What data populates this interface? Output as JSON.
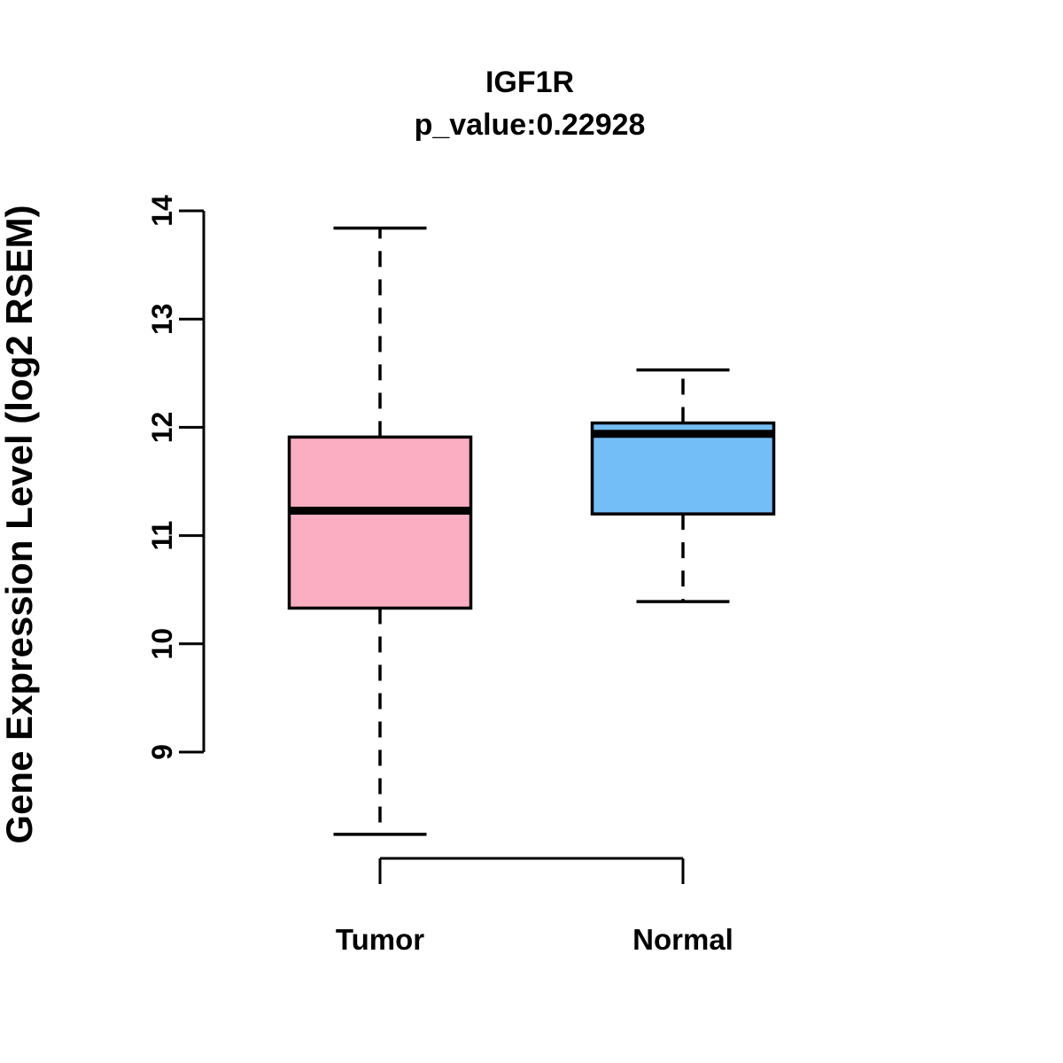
{
  "chart_data": {
    "type": "boxplot",
    "title": "IGF1R",
    "subtitle": "p_value:0.22928",
    "ylabel": "Gene Expression Level (log2 RSEM)",
    "xlabel": "",
    "ylim": [
      9,
      14
    ],
    "yticks": [
      9,
      10,
      11,
      12,
      13,
      14
    ],
    "grid": "off",
    "legend": "none",
    "groups": [
      {
        "label": "Tumor",
        "color": "#FBAEC1",
        "whisker_low": 8.24,
        "q1": 10.33,
        "median": 11.23,
        "q3": 11.91,
        "whisker_high": 13.84
      },
      {
        "label": "Normal",
        "color": "#73BEF6",
        "whisker_low": 10.39,
        "q1": 11.2,
        "median": 11.94,
        "q3": 12.04,
        "whisker_high": 12.53
      }
    ]
  },
  "colors": {
    "stroke": "#000000",
    "background": "#ffffff",
    "tumor_fill": "#FBAEC1",
    "normal_fill": "#73BEF6"
  }
}
